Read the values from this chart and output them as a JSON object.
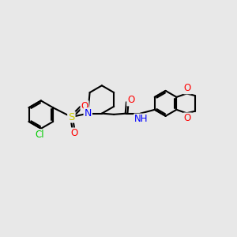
{
  "bg_color": "#e8e8e8",
  "atom_colors": {
    "C": "#000000",
    "N": "#0000ff",
    "O": "#ff0000",
    "S": "#cccc00",
    "Cl": "#00cc00",
    "H": "#000000"
  },
  "bond_color": "#000000",
  "bond_width": 1.5,
  "dbo": 0.055,
  "figsize": [
    3.0,
    3.0
  ],
  "dpi": 100
}
